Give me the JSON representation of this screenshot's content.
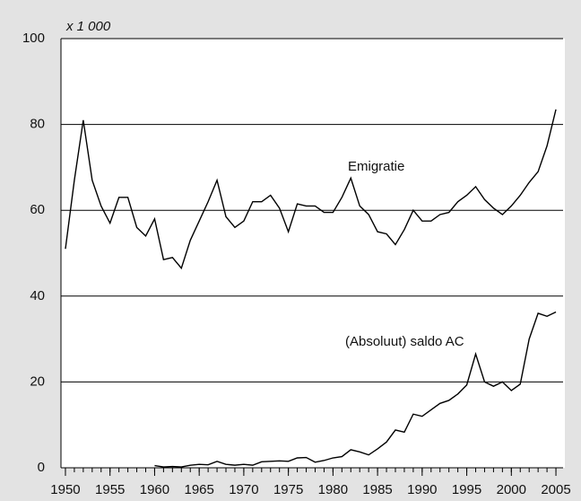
{
  "chart_data": {
    "type": "line",
    "unit_label": "x 1 000",
    "x": [
      1950,
      1951,
      1952,
      1953,
      1954,
      1955,
      1956,
      1957,
      1958,
      1959,
      1960,
      1961,
      1962,
      1963,
      1964,
      1965,
      1966,
      1967,
      1968,
      1969,
      1970,
      1971,
      1972,
      1973,
      1974,
      1975,
      1976,
      1977,
      1978,
      1979,
      1980,
      1981,
      1982,
      1983,
      1984,
      1985,
      1986,
      1987,
      1988,
      1989,
      1990,
      1991,
      1992,
      1993,
      1994,
      1995,
      1996,
      1997,
      1998,
      1999,
      2000,
      2001,
      2002,
      2003,
      2004,
      2005
    ],
    "series": [
      {
        "name": "Emigratie",
        "color": "#000000",
        "values": [
          51,
          67,
          81,
          67,
          61,
          57,
          63,
          63,
          56,
          54,
          58,
          48.5,
          49,
          46.5,
          53,
          57.5,
          62,
          67,
          58.5,
          56,
          57.5,
          62,
          62,
          63.5,
          60.5,
          55,
          61.5,
          61,
          61,
          59.5,
          59.5,
          63,
          67.5,
          61,
          59,
          55,
          54.5,
          52,
          55.5,
          60,
          57.5,
          57.5,
          59,
          59.5,
          62,
          63.5,
          65.5,
          62.5,
          60.5,
          59,
          61,
          63.5,
          66.5,
          69,
          75,
          83.5
        ]
      },
      {
        "name": "(Absoluut) saldo AC",
        "color": "#000000",
        "values": [
          null,
          null,
          null,
          null,
          null,
          null,
          null,
          null,
          null,
          null,
          0.5,
          0.2,
          0.3,
          0.2,
          0.6,
          0.8,
          0.7,
          1.5,
          0.8,
          0.6,
          0.8,
          0.6,
          1.4,
          1.5,
          1.6,
          1.5,
          2.3,
          2.4,
          1.3,
          1.7,
          2.3,
          2.6,
          4.2,
          3.7,
          3.0,
          4.4,
          6.0,
          8.8,
          8.3,
          12.5,
          12,
          13.5,
          15,
          15.7,
          17.2,
          19.3,
          26.5,
          20,
          19,
          20,
          18,
          19.5,
          30,
          36,
          35.3,
          36.3
        ]
      }
    ],
    "xlim": [
      1949.5,
      2005.8
    ],
    "xticks": [
      1950,
      1955,
      1960,
      1965,
      1970,
      1975,
      1980,
      1985,
      1990,
      1995,
      2000,
      2005
    ],
    "ylim": [
      0,
      100
    ],
    "yticks": [
      0,
      20,
      40,
      60,
      80,
      100
    ],
    "grid": true
  }
}
